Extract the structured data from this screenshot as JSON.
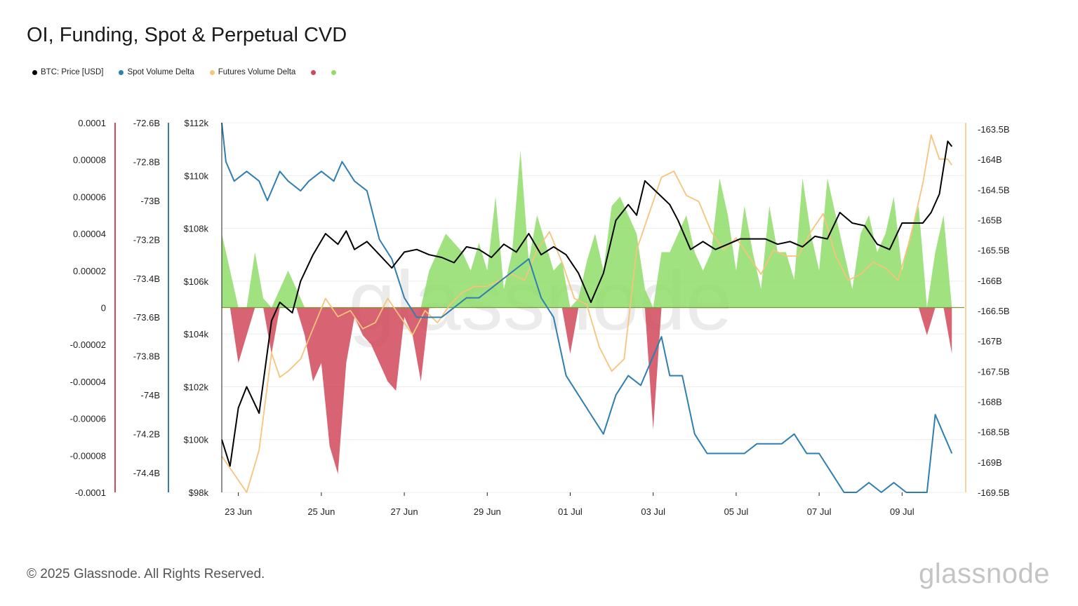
{
  "title": "OI, Funding, Spot & Perpetual CVD",
  "legend": [
    {
      "label": "BTC: Price [USD]",
      "color": "#000000"
    },
    {
      "label": "Spot Volume Delta",
      "color": "#2e7fb0"
    },
    {
      "label": "Futures Volume Delta",
      "color": "#f6c47a"
    },
    {
      "label": "",
      "color": "#d0485a"
    },
    {
      "label": "",
      "color": "#8fdc6a"
    }
  ],
  "footer": "© 2025 Glassnode. All Rights Reserved.",
  "brand": "glassnode",
  "watermark": "glassnode",
  "chart_data": {
    "type": "line",
    "colors": {
      "price": "#000000",
      "spot": "#2e7fb0",
      "futures": "#f6c47a",
      "negative": "#d0485a",
      "positive": "#8fdc6a"
    },
    "x_ticks": [
      "23 Jun",
      "25 Jun",
      "27 Jun",
      "29 Jun",
      "01 Jul",
      "03 Jul",
      "05 Jul",
      "07 Jul",
      "09 Jul"
    ],
    "x_tick_days": [
      0.4,
      2.4,
      4.4,
      6.4,
      8.4,
      10.4,
      12.4,
      14.4,
      16.4
    ],
    "x_range_days": [
      0,
      17.9
    ],
    "axes": {
      "funding": {
        "ticks": [
          "0.0001",
          "0.00008",
          "0.00006",
          "0.00004",
          "0.00002",
          "0",
          "-0.00002",
          "-0.00004",
          "-0.00006",
          "-0.00008",
          "-0.0001"
        ],
        "range": [
          -0.0001,
          0.0001
        ],
        "color": "#d0485a"
      },
      "spot": {
        "ticks": [
          "-72.6B",
          "-72.8B",
          "-73B",
          "-73.2B",
          "-73.4B",
          "-73.6B",
          "-73.8B",
          "-74B",
          "-74.2B",
          "-74.4B"
        ],
        "range": [
          -74.5,
          -72.6
        ],
        "color": "#2e7fb0"
      },
      "price": {
        "ticks": [
          "$112k",
          "$110k",
          "$108k",
          "$106k",
          "$104k",
          "$102k",
          "$100k",
          "$98k"
        ],
        "range": [
          98000,
          112000
        ]
      },
      "futures": {
        "ticks": [
          "-163.5B",
          "-164B",
          "-164.5B",
          "-165B",
          "-165.5B",
          "-166B",
          "-166.5B",
          "-167B",
          "-167.5B",
          "-168B",
          "-168.5B",
          "-169B",
          "-169.5B"
        ],
        "range": [
          -169.5,
          -163.4
        ]
      }
    },
    "series": [
      {
        "name": "BTC: Price [USD]",
        "axis": "price",
        "x": [
          0,
          0.2,
          0.4,
          0.6,
          0.9,
          1.2,
          1.4,
          1.7,
          1.9,
          2.2,
          2.5,
          2.8,
          3.0,
          3.2,
          3.5,
          3.8,
          4.1,
          4.4,
          4.7,
          5.0,
          5.3,
          5.6,
          5.9,
          6.2,
          6.5,
          6.8,
          7.1,
          7.4,
          7.7,
          8.0,
          8.3,
          8.6,
          8.9,
          9.2,
          9.5,
          9.8,
          10.0,
          10.2,
          10.4,
          10.6,
          10.8,
          11.0,
          11.3,
          11.6,
          11.9,
          12.2,
          12.5,
          12.8,
          13.1,
          13.4,
          13.7,
          14.0,
          14.3,
          14.6,
          14.9,
          15.2,
          15.5,
          15.8,
          16.1,
          16.4,
          16.7,
          16.9,
          17.1,
          17.3,
          17.5,
          17.6
        ],
        "y": [
          100000,
          99000,
          101200,
          102000,
          101000,
          104500,
          105200,
          104800,
          106000,
          107000,
          107800,
          107400,
          107900,
          107200,
          107500,
          107000,
          106500,
          107100,
          107200,
          107000,
          106900,
          106700,
          107300,
          107200,
          106900,
          107400,
          107100,
          107800,
          107000,
          107300,
          107000,
          106300,
          105200,
          106300,
          108300,
          108900,
          108500,
          109800,
          109500,
          109200,
          108900,
          108300,
          107200,
          107500,
          107200,
          107400,
          107600,
          107600,
          107600,
          107400,
          107500,
          107300,
          107700,
          107600,
          108600,
          108200,
          108100,
          107400,
          107200,
          108200,
          108200,
          108200,
          108600,
          109300,
          111300,
          111100
        ]
      },
      {
        "name": "Spot Volume Delta",
        "axis": "spot",
        "x": [
          0,
          0.1,
          0.3,
          0.6,
          0.9,
          1.1,
          1.4,
          1.6,
          1.9,
          2.1,
          2.4,
          2.7,
          2.9,
          3.2,
          3.5,
          3.8,
          4.1,
          4.4,
          4.7,
          5.0,
          5.3,
          5.6,
          5.9,
          6.2,
          6.5,
          6.8,
          7.1,
          7.4,
          7.7,
          8.0,
          8.3,
          8.6,
          8.9,
          9.2,
          9.5,
          9.8,
          10.1,
          10.4,
          10.6,
          10.8,
          11.1,
          11.4,
          11.7,
          12.0,
          12.3,
          12.6,
          12.9,
          13.2,
          13.5,
          13.8,
          14.1,
          14.4,
          14.7,
          15.0,
          15.3,
          15.6,
          15.9,
          16.2,
          16.5,
          16.8,
          17.0,
          17.2,
          17.4,
          17.6
        ],
        "y": [
          -72.6,
          -72.8,
          -72.9,
          -72.85,
          -72.9,
          -73.0,
          -72.85,
          -72.9,
          -72.95,
          -72.9,
          -72.85,
          -72.9,
          -72.8,
          -72.9,
          -72.95,
          -73.2,
          -73.3,
          -73.5,
          -73.6,
          -73.6,
          -73.6,
          -73.55,
          -73.5,
          -73.5,
          -73.45,
          -73.4,
          -73.35,
          -73.3,
          -73.5,
          -73.6,
          -73.9,
          -74.0,
          -74.1,
          -74.2,
          -74.0,
          -73.9,
          -73.95,
          -73.8,
          -73.7,
          -73.9,
          -73.9,
          -74.2,
          -74.3,
          -74.3,
          -74.3,
          -74.3,
          -74.25,
          -74.25,
          -74.25,
          -74.2,
          -74.3,
          -74.3,
          -74.4,
          -74.5,
          -74.5,
          -74.45,
          -74.5,
          -74.45,
          -74.5,
          -74.5,
          -74.5,
          -74.1,
          -74.2,
          -74.3
        ]
      },
      {
        "name": "Futures Volume Delta",
        "axis": "futures",
        "x": [
          0,
          0.3,
          0.6,
          0.9,
          1.2,
          1.4,
          1.6,
          1.9,
          2.2,
          2.5,
          2.8,
          3.1,
          3.4,
          3.7,
          4.0,
          4.3,
          4.6,
          4.9,
          5.2,
          5.5,
          5.8,
          6.1,
          6.4,
          6.7,
          7.0,
          7.3,
          7.6,
          7.9,
          8.2,
          8.5,
          8.8,
          9.1,
          9.4,
          9.7,
          10.0,
          10.3,
          10.6,
          10.9,
          11.2,
          11.5,
          11.8,
          12.1,
          12.4,
          12.7,
          13.0,
          13.3,
          13.6,
          13.9,
          14.2,
          14.5,
          14.8,
          15.1,
          15.4,
          15.7,
          16.0,
          16.3,
          16.6,
          16.9,
          17.1,
          17.3,
          17.5,
          17.6
        ],
        "y": [
          -168.9,
          -169.2,
          -169.5,
          -168.8,
          -167.2,
          -167.6,
          -167.5,
          -167.3,
          -166.8,
          -166.3,
          -166.6,
          -166.5,
          -166.8,
          -166.7,
          -166.3,
          -166.6,
          -166.9,
          -166.5,
          -166.7,
          -166.4,
          -166.2,
          -166.1,
          -166.1,
          -166.0,
          -165.9,
          -166.0,
          -165.5,
          -165.2,
          -165.7,
          -166.3,
          -166.4,
          -167.1,
          -167.5,
          -167.3,
          -165.5,
          -164.9,
          -164.3,
          -164.2,
          -164.6,
          -164.7,
          -165.2,
          -165.5,
          -165.3,
          -165.6,
          -165.9,
          -165.5,
          -165.6,
          -165.6,
          -165.2,
          -164.9,
          -165.6,
          -166.0,
          -165.9,
          -165.7,
          -165.8,
          -166.0,
          -165.3,
          -164.4,
          -163.6,
          -164.0,
          -164.0,
          -164.1
        ]
      },
      {
        "name": "Funding Rate",
        "axis": "funding",
        "x": [
          0,
          0.2,
          0.4,
          0.6,
          0.8,
          1.0,
          1.2,
          1.4,
          1.6,
          1.8,
          2.0,
          2.2,
          2.4,
          2.6,
          2.8,
          3.0,
          3.2,
          3.4,
          3.6,
          3.8,
          4.0,
          4.2,
          4.4,
          4.6,
          4.8,
          5.0,
          5.2,
          5.4,
          5.6,
          5.8,
          6.0,
          6.2,
          6.4,
          6.6,
          6.8,
          7.0,
          7.2,
          7.4,
          7.6,
          7.8,
          8.0,
          8.2,
          8.4,
          8.6,
          8.8,
          9.0,
          9.2,
          9.4,
          9.6,
          9.8,
          10.0,
          10.2,
          10.4,
          10.6,
          10.8,
          11.0,
          11.2,
          11.4,
          11.6,
          11.8,
          12.0,
          12.2,
          12.4,
          12.6,
          12.8,
          13.0,
          13.2,
          13.4,
          13.6,
          13.8,
          14.0,
          14.2,
          14.4,
          14.6,
          14.8,
          15.0,
          15.2,
          15.4,
          15.6,
          15.8,
          16.0,
          16.2,
          16.4,
          16.6,
          16.8,
          17.0,
          17.2,
          17.4,
          17.6
        ],
        "y": [
          4e-05,
          2e-05,
          -3e-05,
          -1.5e-05,
          3e-05,
          5e-06,
          -2.5e-05,
          1e-05,
          2e-05,
          1e-05,
          -1.5e-05,
          -4e-05,
          -3e-05,
          -7.5e-05,
          -9e-05,
          -3e-05,
          -5e-06,
          -1.5e-05,
          -2e-05,
          -3e-05,
          -4e-05,
          -4.5e-05,
          -5e-06,
          -1.5e-05,
          -4e-05,
          2e-05,
          3e-05,
          4e-05,
          3.5e-05,
          3e-05,
          2e-05,
          3.5e-05,
          2e-05,
          6e-05,
          1e-05,
          3e-05,
          8.5e-05,
          2.5e-05,
          5e-05,
          3.5e-05,
          2e-05,
          2.5e-05,
          -2.5e-05,
          5e-06,
          2.5e-05,
          4e-05,
          2e-05,
          5.5e-05,
          6e-05,
          5e-05,
          4e-05,
          1e-05,
          -6.6e-05,
          3e-05,
          3e-05,
          4e-05,
          5e-05,
          3e-05,
          2e-05,
          3e-05,
          7e-05,
          5e-05,
          2e-05,
          5.5e-05,
          3e-05,
          1e-05,
          5.5e-05,
          3e-05,
          3e-05,
          1.5e-05,
          7e-05,
          4e-05,
          2e-05,
          7e-05,
          5e-05,
          3e-05,
          1e-05,
          4e-05,
          5e-05,
          3e-05,
          4e-05,
          6e-05,
          2e-05,
          4e-05,
          5.5e-05,
          -1.5e-05,
          3e-05,
          5e-05,
          -2.5e-05
        ]
      }
    ]
  }
}
